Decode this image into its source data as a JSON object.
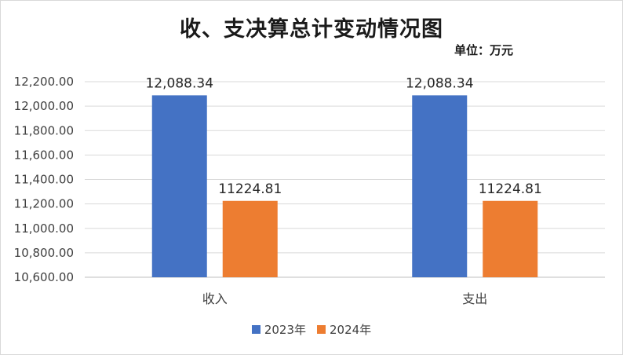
{
  "chart_data": {
    "type": "bar",
    "title": "收、支决算总计变动情况图",
    "unit": "单位：万元",
    "categories": [
      "收入",
      "支出"
    ],
    "series": [
      {
        "name": "2023年",
        "color": "#4472C4",
        "values": [
          12088.34,
          12088.34
        ],
        "labels": [
          "12,088.34",
          "12,088.34"
        ]
      },
      {
        "name": "2024年",
        "color": "#ED7D31",
        "values": [
          11224.81,
          11224.81
        ],
        "labels": [
          "11224.81",
          "11224.81"
        ]
      }
    ],
    "ylim": [
      10600,
      12200
    ],
    "yticks": [
      10600,
      10800,
      11000,
      11200,
      11400,
      11600,
      11800,
      12000,
      12200
    ],
    "ytick_labels": [
      "10,600.00",
      "10,800.00",
      "11,000.00",
      "11,200.00",
      "11,400.00",
      "11,600.00",
      "11,800.00",
      "12,000.00",
      "12,200.00"
    ],
    "grid": true,
    "gridline_color": "#d9d9d9",
    "legend_position": "bottom"
  }
}
